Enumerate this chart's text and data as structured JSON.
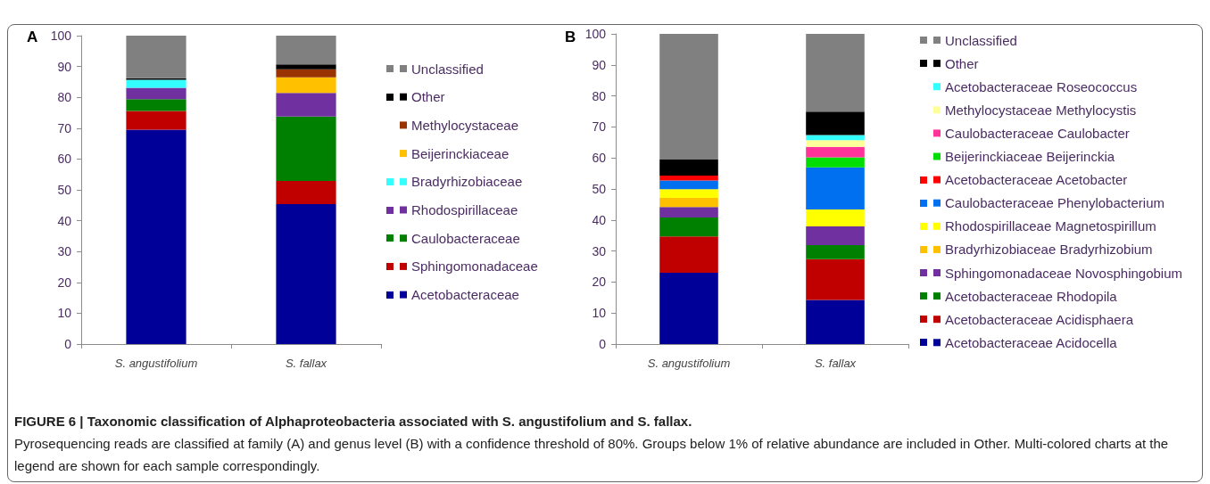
{
  "chart_data": [
    {
      "type": "bar",
      "title": "A",
      "categories": [
        "S. angustifolium",
        "S. fallax"
      ],
      "stacked": true,
      "ylim": [
        0,
        100
      ],
      "yticks": [
        0,
        10,
        20,
        30,
        40,
        50,
        60,
        70,
        80,
        90,
        100
      ],
      "legend": "right",
      "series": [
        {
          "name": "Acetobacteraceae",
          "color": "#000099",
          "values": [
            69.5,
            45.4
          ]
        },
        {
          "name": "Sphingomonadaceae",
          "color": "#c00000",
          "values": [
            6.1,
            7.5
          ]
        },
        {
          "name": "Caulobacteraceae",
          "color": "#008000",
          "values": [
            3.8,
            20.9
          ]
        },
        {
          "name": "Rhodospirillaceae",
          "color": "#7030a0",
          "values": [
            3.7,
            7.6
          ]
        },
        {
          "name": "Bradyrhizobiaceae",
          "color": "#33ffff",
          "values": [
            2.6,
            null
          ]
        },
        {
          "name": "Beijerinckiaceae",
          "color": "#ffc000",
          "values": [
            null,
            5.1
          ]
        },
        {
          "name": "Methylocystaceae",
          "color": "#993300",
          "values": [
            null,
            2.6
          ]
        },
        {
          "name": "Other",
          "color": "#000000",
          "values": [
            0.5,
            1.6
          ]
        },
        {
          "name": "Unclassified",
          "color": "#808080",
          "values": [
            13.8,
            9.3
          ]
        }
      ],
      "annotations": [
        "FIGURE 6 | Taxonomic classification of Alphaproteobacteria associated with S. angustifolium and S. fallax.",
        "Pyrosequencing reads are classified at family (A) and genus level (B) with a confidence threshold of 80%. Groups below 1% of relative abundance are included in Other. Multi-colored charts at the legend are shown for each sample correspondingly."
      ]
    },
    {
      "type": "bar",
      "title": "B",
      "categories": [
        "S. angustifolium",
        "S. fallax"
      ],
      "stacked": true,
      "ylim": [
        0,
        100
      ],
      "yticks": [
        0,
        10,
        20,
        30,
        40,
        50,
        60,
        70,
        80,
        90,
        100
      ],
      "legend": "right",
      "series": [
        {
          "name": "Acetobacteraceae Acidocella",
          "color": "#000099",
          "values": [
            23.0,
            14.2
          ]
        },
        {
          "name": "Acetobacteraceae Acidisphaera",
          "color": "#c00000",
          "values": [
            11.7,
            13.2
          ]
        },
        {
          "name": "Acetobacteraceae Rhodopila",
          "color": "#008000",
          "values": [
            6.1,
            4.5
          ]
        },
        {
          "name": "Sphingomonadaceae Novosphingobium",
          "color": "#7030a0",
          "values": [
            3.4,
            6.0
          ]
        },
        {
          "name": "Bradyrhizobiaceae Bradyrhizobium",
          "color": "#ffc000",
          "values": [
            2.9,
            null
          ]
        },
        {
          "name": "Rhodospirillaceae Magnetospirillum",
          "color": "#ffff00",
          "values": [
            2.8,
            5.5
          ]
        },
        {
          "name": "Caulobacteraceae Phenylobacterium",
          "color": "#0070f0",
          "values": [
            2.8,
            13.6
          ]
        },
        {
          "name": "Acetobacteraceae Acetobacter",
          "color": "#ff0000",
          "values": [
            1.6,
            null
          ]
        },
        {
          "name": "Beijerinckiaceae Beijerinckia",
          "color": "#00dd00",
          "values": [
            null,
            3.2
          ]
        },
        {
          "name": "Caulobacteraceae Caulobacter",
          "color": "#ff3399",
          "values": [
            null,
            3.4
          ]
        },
        {
          "name": "Methylocystaceae Methylocystis",
          "color": "#ffff99",
          "values": [
            null,
            2.1
          ]
        },
        {
          "name": "Acetobacteraceae Roseococcus",
          "color": "#33ffff",
          "values": [
            null,
            1.7
          ]
        },
        {
          "name": "Other",
          "color": "#000000",
          "values": [
            5.2,
            7.5
          ]
        },
        {
          "name": "Unclassified",
          "color": "#808080",
          "values": [
            40.5,
            25.1
          ]
        }
      ]
    }
  ]
}
